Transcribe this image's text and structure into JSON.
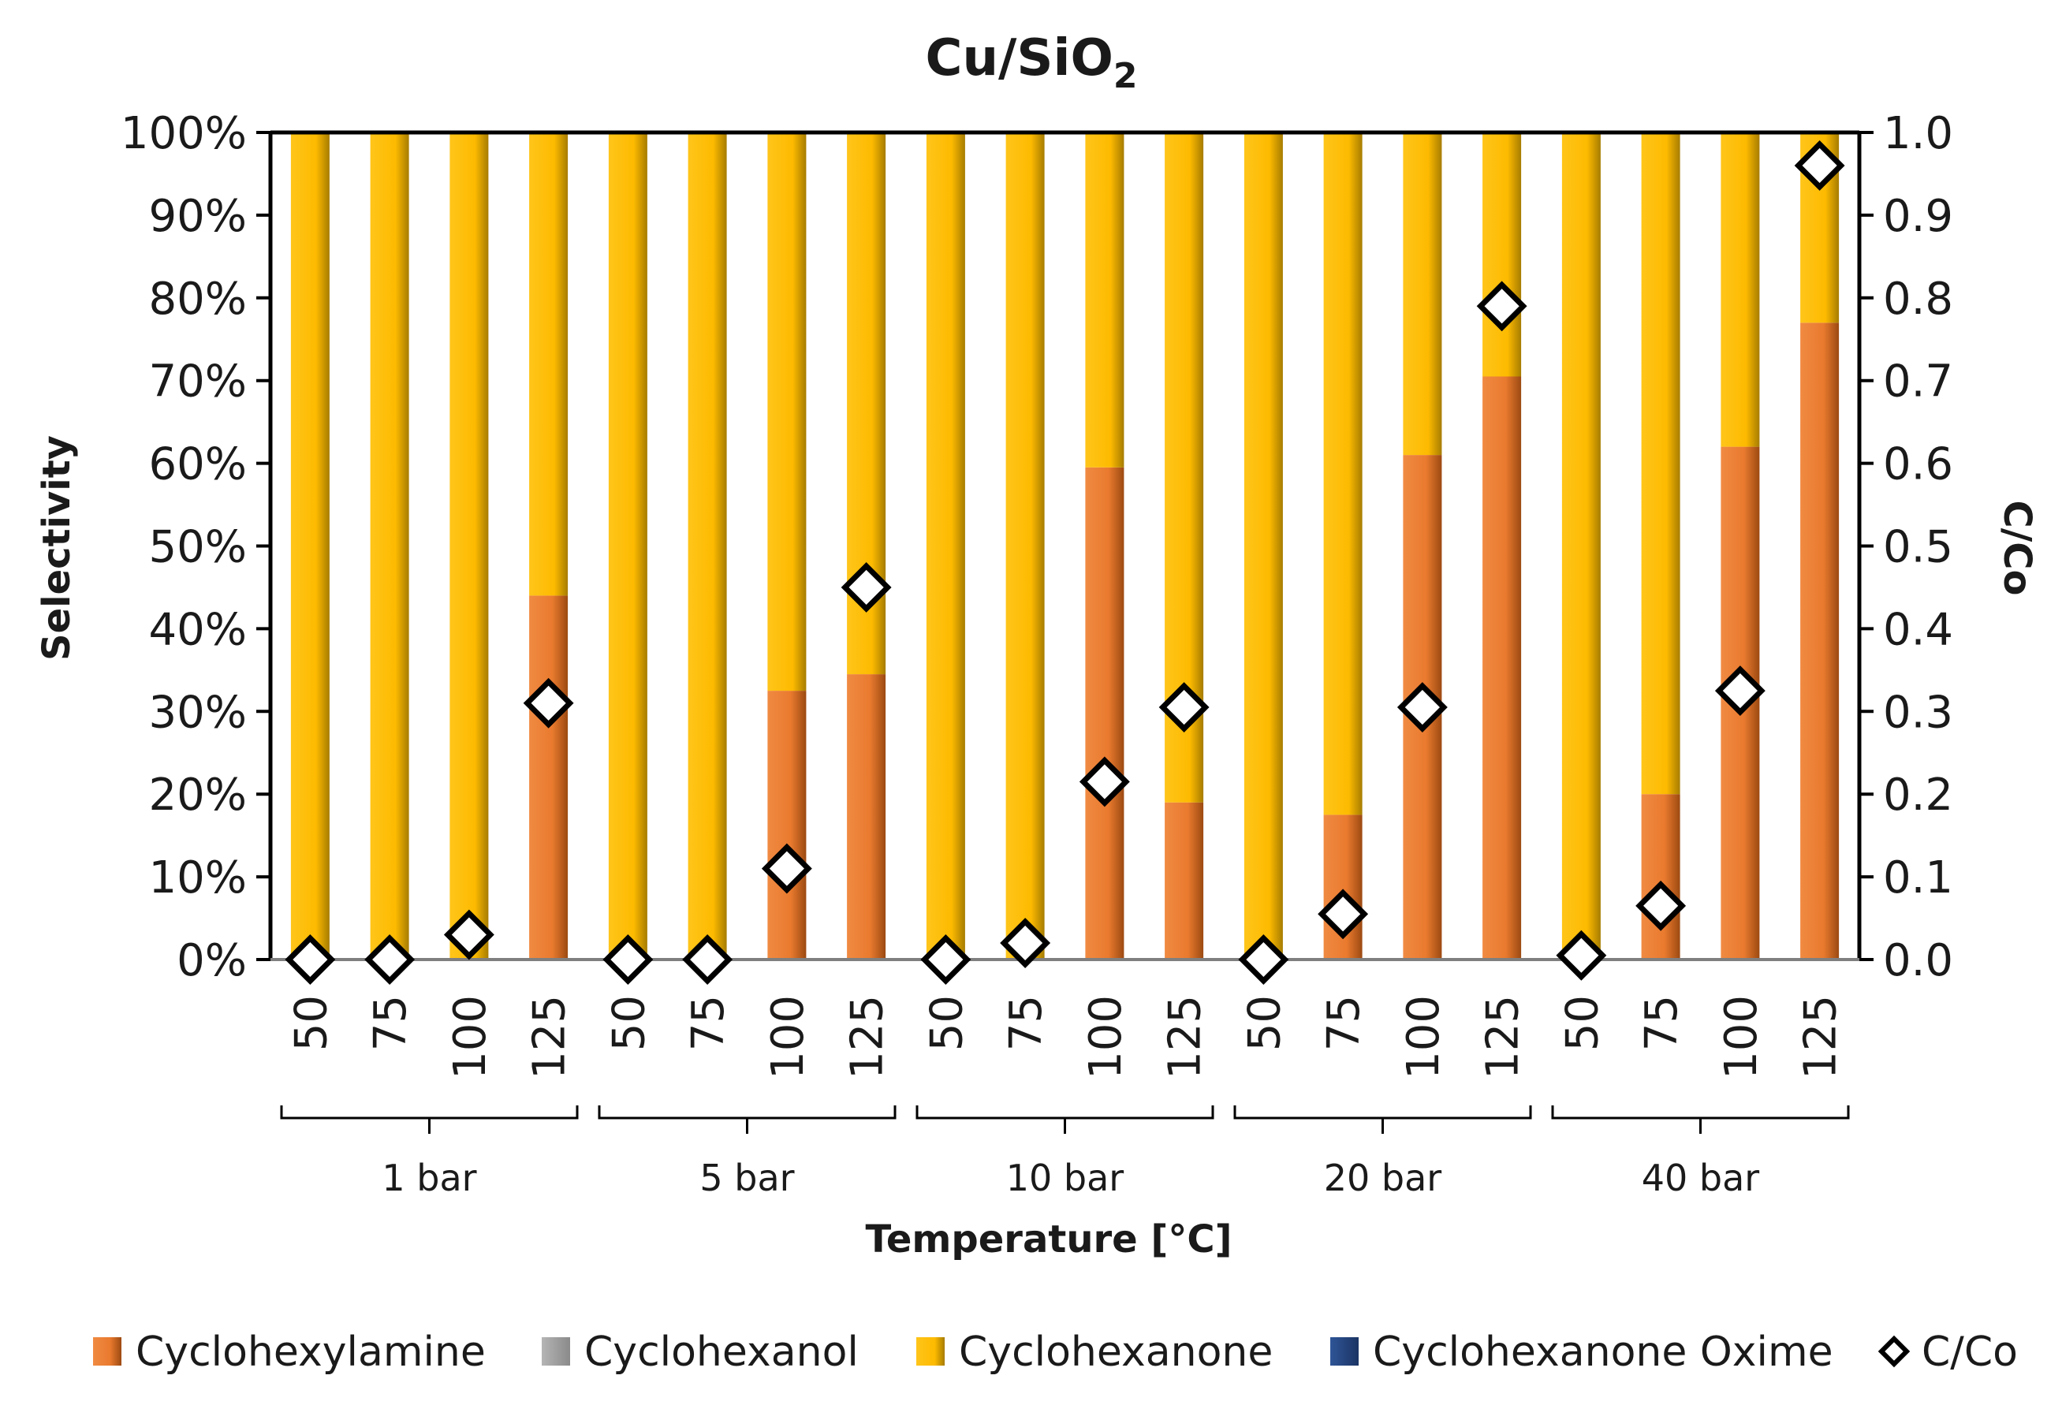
{
  "chart_data": {
    "type": "bar",
    "subtype": "stacked-100-percent-with-secondary-scatter",
    "title": "Cu/SiO",
    "title_subscript": "2",
    "xlabel": "Temperature [°C]",
    "ylabel": "Selectivity",
    "y2label": "C/Co",
    "ylim": [
      0,
      100
    ],
    "y2lim": [
      0,
      1.0
    ],
    "y_ticks": [
      "0%",
      "10%",
      "20%",
      "30%",
      "40%",
      "50%",
      "60%",
      "70%",
      "80%",
      "90%",
      "100%"
    ],
    "y2_ticks": [
      "0.0",
      "0.1",
      "0.2",
      "0.3",
      "0.4",
      "0.5",
      "0.6",
      "0.7",
      "0.8",
      "0.9",
      "1.0"
    ],
    "groups": [
      "1 bar",
      "5 bar",
      "10 bar",
      "20 bar",
      "40 bar"
    ],
    "categories": [
      "50",
      "75",
      "100",
      "125",
      "50",
      "75",
      "100",
      "125",
      "50",
      "75",
      "100",
      "125",
      "50",
      "75",
      "100",
      "125",
      "50",
      "75",
      "100",
      "125"
    ],
    "series": [
      {
        "name": "Cyclohexylamine",
        "kind": "bar",
        "color": "#ED7D31",
        "values": [
          0,
          0,
          0,
          44,
          0,
          0,
          32.5,
          34.5,
          0,
          0,
          59.5,
          19,
          0,
          17.5,
          61,
          70.5,
          0,
          20,
          62,
          77
        ]
      },
      {
        "name": "Cyclohexanol",
        "kind": "bar",
        "color": "#A5A5A5",
        "values": [
          0,
          0,
          0,
          0,
          0,
          0,
          0,
          0,
          0,
          0,
          0,
          0,
          0,
          0,
          0,
          0,
          0,
          0,
          0,
          0
        ]
      },
      {
        "name": "Cyclohexanone",
        "kind": "bar",
        "color": "#FFC000",
        "values": [
          100,
          100,
          100,
          56,
          100,
          100,
          67.5,
          65.5,
          100,
          100,
          40.5,
          81,
          100,
          82.5,
          39,
          29.5,
          100,
          80,
          38,
          23
        ]
      },
      {
        "name": "Cyclohexanone Oxime",
        "kind": "bar",
        "color": "#264478",
        "values": [
          0,
          0,
          0,
          0,
          0,
          0,
          0,
          0,
          0,
          0,
          0,
          0,
          0,
          0,
          0,
          0,
          0,
          0,
          0,
          0
        ]
      },
      {
        "name": "C/Co",
        "kind": "scatter",
        "axis": "secondary",
        "marker": "diamond",
        "values": [
          0.0,
          0.0,
          0.03,
          0.31,
          0.0,
          0.0,
          0.11,
          0.45,
          0.0,
          0.02,
          0.215,
          0.305,
          0.0,
          0.055,
          0.305,
          0.79,
          0.005,
          0.065,
          0.325,
          0.96
        ]
      }
    ],
    "legend": [
      "Cyclohexylamine",
      "Cyclohexanol",
      "Cyclohexanone",
      "Cyclohexanone Oxime",
      "C/Co"
    ],
    "legend_position": "bottom",
    "grid": false
  }
}
